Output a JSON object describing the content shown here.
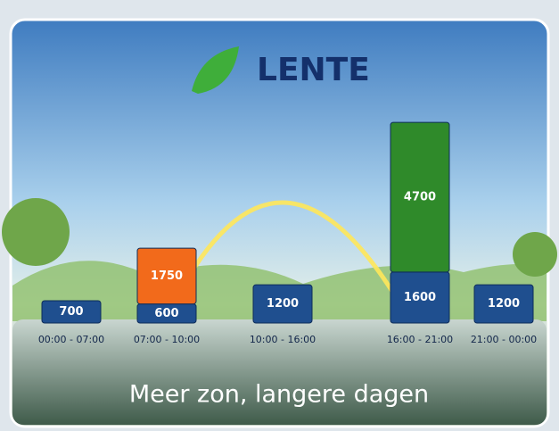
{
  "chart_data": {
    "type": "stacked-bar",
    "title": "LENTE",
    "subtitle": "Meer zon, langere dagen",
    "categories": [
      "00:00 - 07:00",
      "07:00 - 10:00",
      "10:00 - 16:00",
      "16:00 - 21:00",
      "21:00 - 00:00"
    ],
    "series": [
      {
        "color": "#1f4f8f",
        "values": [
          700,
          600,
          1200,
          1600,
          1200
        ]
      },
      {
        "colors": [
          null,
          "#f26a1b",
          null,
          "#2f8a2a",
          null
        ],
        "values": [
          null,
          1750,
          null,
          4700,
          null
        ]
      }
    ],
    "ylim": [
      0,
      6500
    ]
  }
}
